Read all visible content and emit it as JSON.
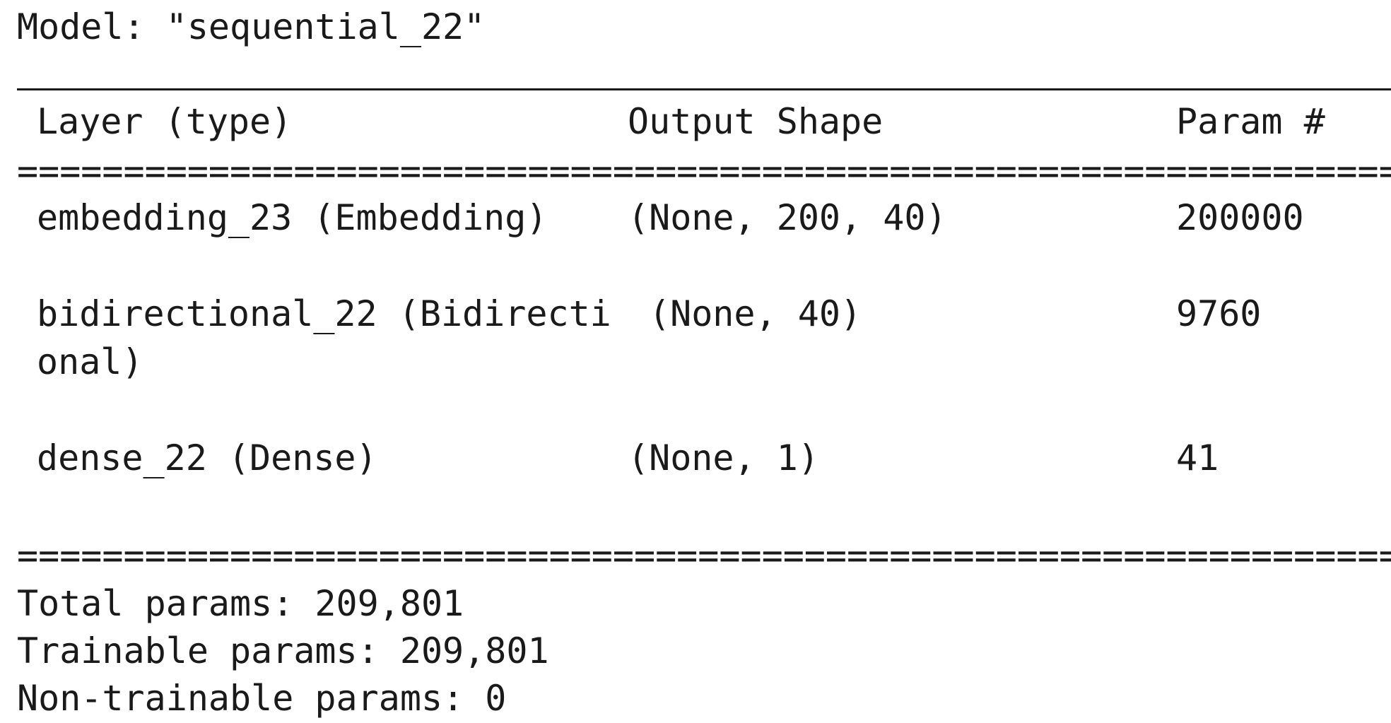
{
  "model_title": "Model: \"sequential_22\"",
  "header": {
    "layer": "Layer (type)",
    "output_shape": "Output Shape",
    "param": "Param #"
  },
  "rule_equals": "==================================================================================",
  "layers": [
    {
      "name": "embedding_23 (Embedding)",
      "shape": "(None, 200, 40)",
      "params": "200000"
    },
    {
      "name_line1": "bidirectional_22 (Bidirecti",
      "name_line2": "onal)",
      "shape": "(None, 40)",
      "params": "9760"
    },
    {
      "name": "dense_22 (Dense)",
      "shape": "(None, 1)",
      "params": "41"
    }
  ],
  "summary": {
    "total": "Total params: 209,801",
    "trainable": "Trainable params: 209,801",
    "non_trainable": "Non-trainable params: 0"
  }
}
